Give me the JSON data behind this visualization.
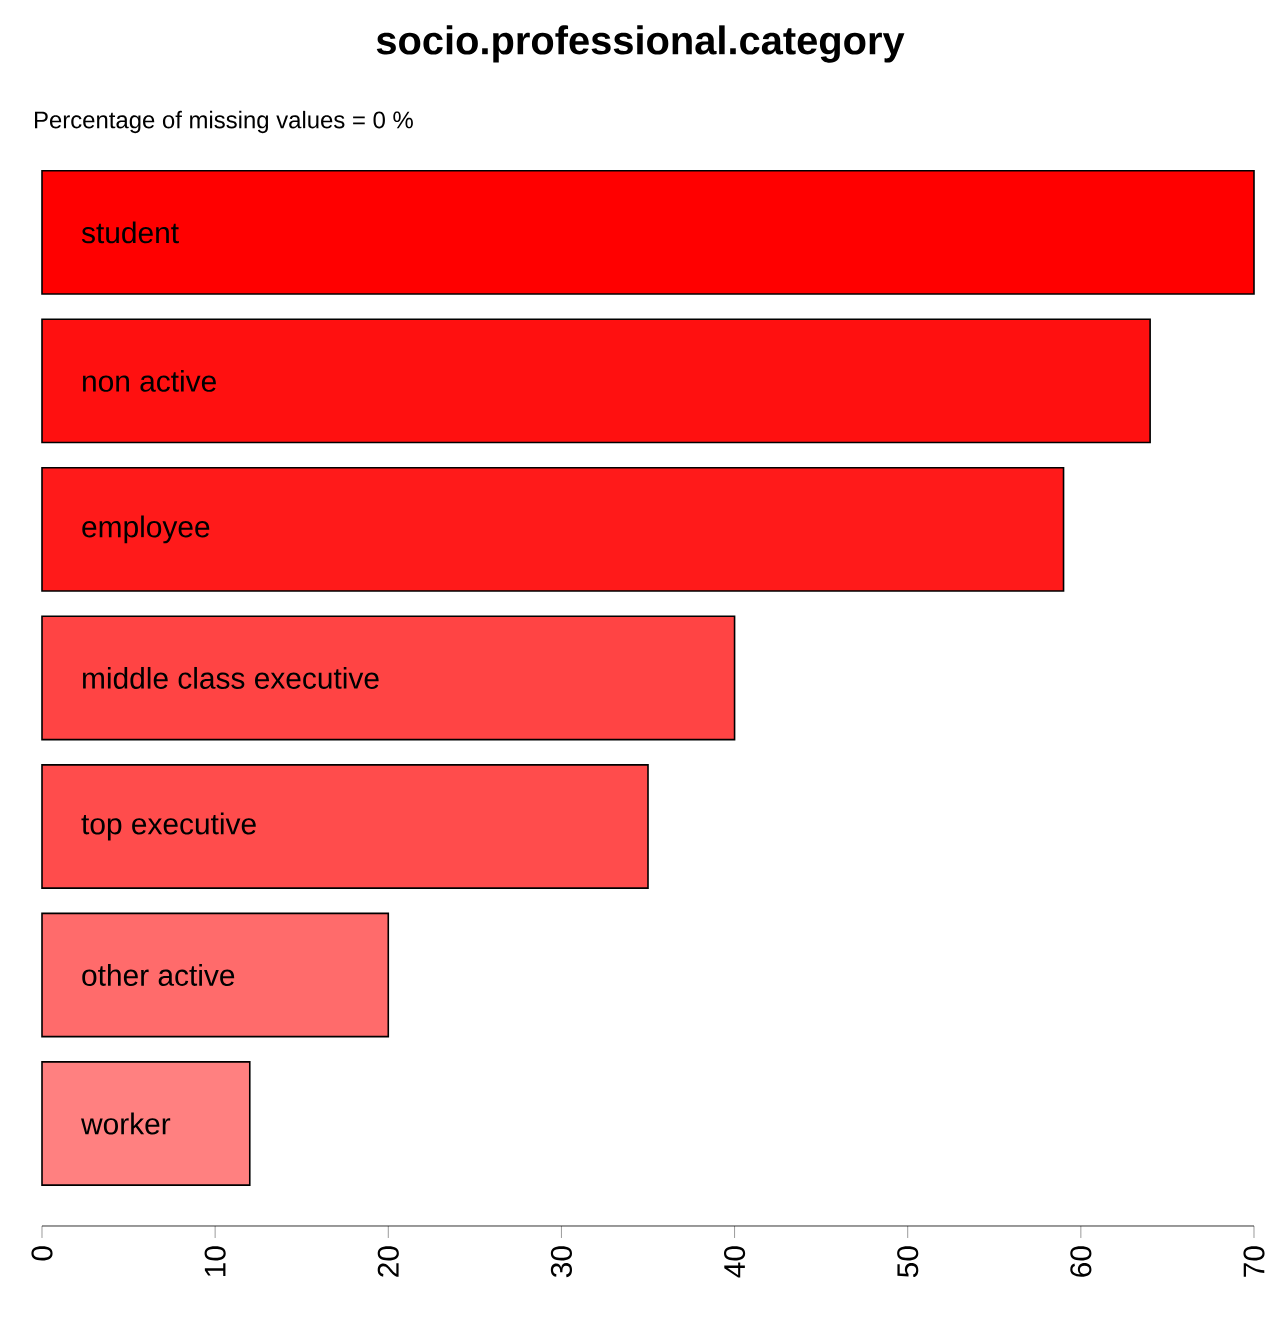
{
  "chart_data": {
    "type": "bar",
    "orientation": "horizontal",
    "title": "socio.professional.category",
    "annotations": [
      "Percentage of missing values  = 0 %"
    ],
    "categories": [
      "student",
      "non active",
      "employee",
      "middle class executive",
      "top executive",
      "other active",
      "worker"
    ],
    "values": [
      70,
      64,
      59,
      40,
      35,
      20,
      12
    ],
    "colors": [
      "#ff0000",
      "#ff1010",
      "#ff1a1a",
      "#ff4444",
      "#ff4c4c",
      "#ff6b6b",
      "#ff8080"
    ],
    "xlim": [
      0,
      70
    ],
    "xticks": [
      0,
      10,
      20,
      30,
      40,
      50,
      60,
      70
    ]
  }
}
